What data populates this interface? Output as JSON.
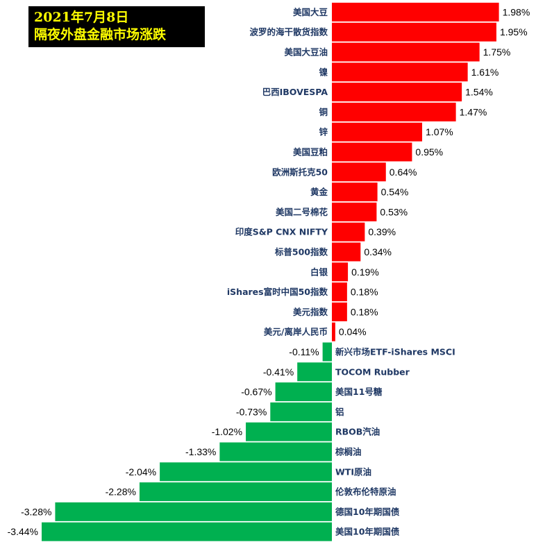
{
  "title": {
    "line1": "2021年7月8日",
    "line2": "隔夜外盘金融市场涨跌"
  },
  "colors": {
    "positive": "#ff0000",
    "negative": "#00b050",
    "title_bg": "#000000",
    "title_text": "#ffff00",
    "label_text": "#1f3864"
  },
  "chart_data": {
    "type": "bar",
    "orientation": "horizontal",
    "title": "2021年7月8日 隔夜外盘金融市场涨跌",
    "unit": "%",
    "categories": [
      "美国大豆",
      "波罗的海干散货指数",
      "美国大豆油",
      "镍",
      "巴西IBOVESPA",
      "铜",
      "锌",
      "美国豆粕",
      "欧洲斯托克50",
      "黄金",
      "美国二号棉花",
      "印度S&P CNX NIFTY",
      "标普500指数",
      "白银",
      "iShares富时中国50指数",
      "美元指数",
      "美元/离岸人民币",
      "新兴市场ETF-iShares MSCI",
      "TOCOM Rubber",
      "美国11号糖",
      "铝",
      "RBOB汽油",
      "棕榈油",
      "WTI原油",
      "伦敦布伦特原油",
      "德国10年期国债",
      "美国10年期国债"
    ],
    "values": [
      1.98,
      1.95,
      1.75,
      1.61,
      1.54,
      1.47,
      1.07,
      0.95,
      0.64,
      0.54,
      0.53,
      0.39,
      0.34,
      0.19,
      0.18,
      0.18,
      0.04,
      -0.11,
      -0.41,
      -0.67,
      -0.73,
      -1.02,
      -1.33,
      -2.04,
      -2.28,
      -3.28,
      -3.44
    ],
    "labels": [
      "1.98%",
      "1.95%",
      "1.75%",
      "1.61%",
      "1.54%",
      "1.47%",
      "1.07%",
      "0.95%",
      "0.64%",
      "0.54%",
      "0.53%",
      "0.39%",
      "0.34%",
      "0.19%",
      "0.18%",
      "0.18%",
      "0.04%",
      "-0.11%",
      "-0.41%",
      "-0.67%",
      "-0.73%",
      "-1.02%",
      "-1.33%",
      "-2.04%",
      "-2.28%",
      "-3.28%",
      "-3.44%"
    ],
    "xlim": [
      -3.44,
      1.98
    ],
    "grid": false,
    "legend": "none"
  }
}
